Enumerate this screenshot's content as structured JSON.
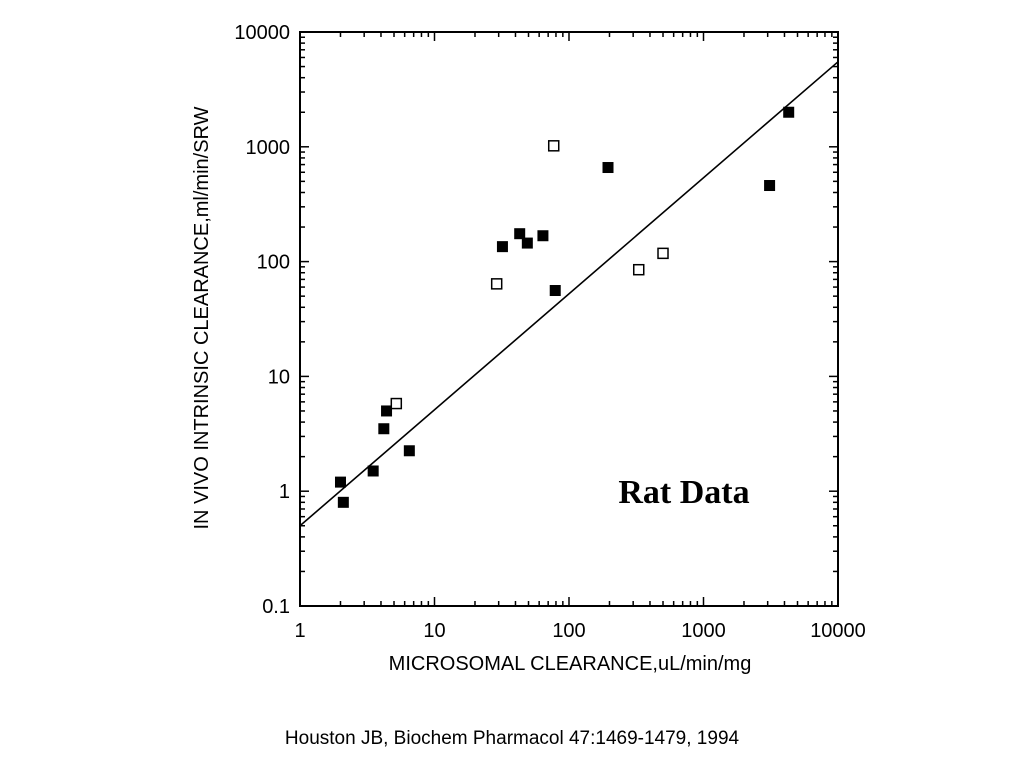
{
  "chart_data": {
    "type": "scatter",
    "xlabel": "MICROSOMAL CLEARANCE,uL/min/mg",
    "ylabel": "IN VIVO INTRINSIC CLEARANCE,ml/min/SRW",
    "xscale": "log",
    "yscale": "log",
    "xlim": [
      1,
      10000
    ],
    "ylim": [
      0.1,
      10000
    ],
    "x_ticks": [
      "1",
      "10",
      "100",
      "1000",
      "10000"
    ],
    "y_ticks": [
      "0.1",
      "1",
      "10",
      "100",
      "1000",
      "10000"
    ],
    "grid": false,
    "annotation": "Rat Data",
    "series": [
      {
        "marker": "filled-square",
        "points": [
          {
            "x": 2.0,
            "y": 1.2
          },
          {
            "x": 2.1,
            "y": 0.8
          },
          {
            "x": 3.5,
            "y": 1.5
          },
          {
            "x": 4.2,
            "y": 3.5
          },
          {
            "x": 4.4,
            "y": 5.0
          },
          {
            "x": 6.5,
            "y": 2.25
          },
          {
            "x": 32,
            "y": 135
          },
          {
            "x": 43,
            "y": 175
          },
          {
            "x": 49,
            "y": 145
          },
          {
            "x": 64,
            "y": 168
          },
          {
            "x": 79,
            "y": 56
          },
          {
            "x": 195,
            "y": 660
          },
          {
            "x": 3100,
            "y": 460
          },
          {
            "x": 4300,
            "y": 2000
          }
        ]
      },
      {
        "marker": "open-square",
        "points": [
          {
            "x": 5.2,
            "y": 5.8
          },
          {
            "x": 29,
            "y": 64
          },
          {
            "x": 77,
            "y": 1020
          },
          {
            "x": 330,
            "y": 85
          },
          {
            "x": 500,
            "y": 118
          }
        ]
      }
    ],
    "fit_line": {
      "x": [
        1,
        10000
      ],
      "y": [
        0.5,
        5500
      ]
    }
  },
  "citation": "Houston JB, Biochem Pharmacol 47:1469-1479, 1994"
}
